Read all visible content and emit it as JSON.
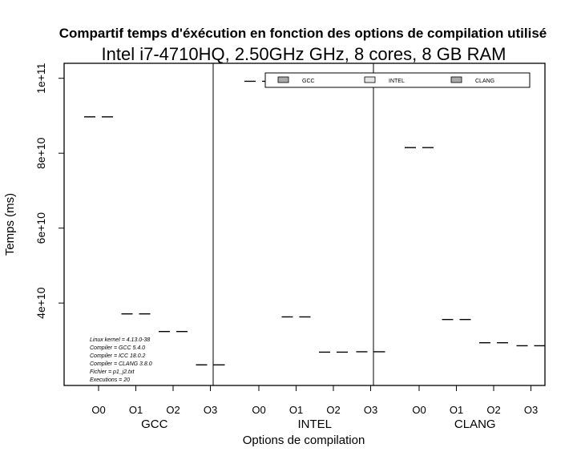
{
  "chart_data": {
    "type": "scatter",
    "title": "Compartif temps d'éxécution en fonction des options de compilation utilisé",
    "subtitle": "Intel i7-4710HQ, 2.50GHz GHz, 8 cores, 8 GB RAM",
    "xlabel": "Options de compilation",
    "ylabel": "Temps (ms)",
    "ylim": [
      18000000000,
      104000000000
    ],
    "y_ticks": [
      40000000000,
      60000000000,
      80000000000,
      100000000000
    ],
    "y_tick_labels": [
      "4e+10",
      "6e+10",
      "8e+10",
      "1e+11"
    ],
    "groups": [
      "GCC",
      "INTEL",
      "CLANG"
    ],
    "options": [
      "O0",
      "O1",
      "O2",
      "O3"
    ],
    "legend_position": "top-right",
    "legend": [
      "GCC",
      "INTEL",
      "CLANG"
    ],
    "series": [
      {
        "name": "GCC",
        "values": [
          89700000000,
          37100000000,
          32400000000,
          23500000000
        ]
      },
      {
        "name": "INTEL",
        "values": [
          99200000000,
          36300000000,
          26900000000,
          27000000000
        ]
      },
      {
        "name": "CLANG",
        "values": [
          81500000000,
          35600000000,
          29400000000,
          28600000000
        ]
      }
    ],
    "annotations": [
      "Linux kernel = 4.13.0-38",
      "Compiler = GCC 5.4.0",
      "Compiler = ICC 18.0.2",
      "Compiler = CLANG 3.8.0",
      "Fichier = p1_j2.txt",
      "Executions = 20"
    ],
    "colors": {
      "axis": "#000000",
      "legend_fill": "#a9a9a9",
      "legend_fill_light": "#e6e6e6"
    }
  }
}
